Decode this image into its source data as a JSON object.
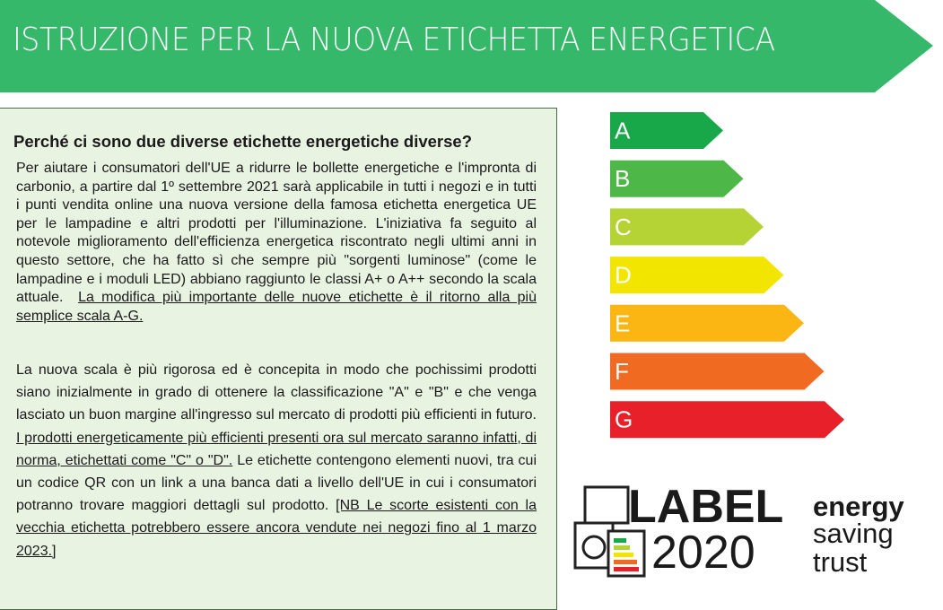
{
  "header": {
    "title": "ISTRUZIONE PER LA NUOVA ETICHETTA ENERGETICA"
  },
  "panel": {
    "heading": "Perché ci sono due diverse etichette energetiche diverse?",
    "paragraphs": [
      [
        "Per aiutare i consumatori dell'UE a ridurre le bollette energetiche e l'impronta di carbonio, a partire dal 1º settembre 2021 sarà applicabile in tutti i negozi e in tutti i punti vendita online una nuova versione della famosa etichetta energetica UE per le lampadine e altri prodotti per l'illuminazione. L'iniziativa fa seguito al notevole miglioramento dell'efficienza energetica riscontrato negli ultimi anni in questo settore, che ha fatto sì che sempre più \"sorgenti luminose\" (come le lampadine e i moduli LED) abbiano raggiunto le classi A+ o A++ secondo la scala attuale.",
        "La modifica più importante delle nuove etichette è il ritorno alla più semplice scala A-G."
      ],
      [
        "La nuova scala è più rigorosa ed è concepita in modo che pochissimi prodotti siano inizialmente in grado di ottenere la classificazione \"A\" e \"B\" e che venga lasciato un buon margine all'ingresso sul mercato di prodotti più efficienti in futuro.",
        "I prodotti energeticamente più efficienti presenti ora sul mercato saranno infatti, di norma, etichettati come \"C\" o \"D\".",
        "Le etichette contengono elementi nuovi, tra cui un codice QR con un link a una banca dati a livello dell'UE in cui i consumatori potranno trovare maggiori dettagli sul prodotto.",
        "[NB Le scorte esistenti con la vecchia etichetta potrebbero essere ancora vendute nei negozi fino al 1 marzo 2023.]"
      ]
    ]
  },
  "energy_scale": [
    {
      "label": "A",
      "color": "#18a84a"
    },
    {
      "label": "B",
      "color": "#4db848"
    },
    {
      "label": "C",
      "color": "#b5d334"
    },
    {
      "label": "D",
      "color": "#f2e600"
    },
    {
      "label": "E",
      "color": "#fbb614"
    },
    {
      "label": "F",
      "color": "#f06a22"
    },
    {
      "label": "G",
      "color": "#e8202a"
    }
  ],
  "logos": {
    "label_top": "LABEL",
    "label_bottom": "2020",
    "est": [
      "energy",
      "saving",
      "trust"
    ]
  }
}
